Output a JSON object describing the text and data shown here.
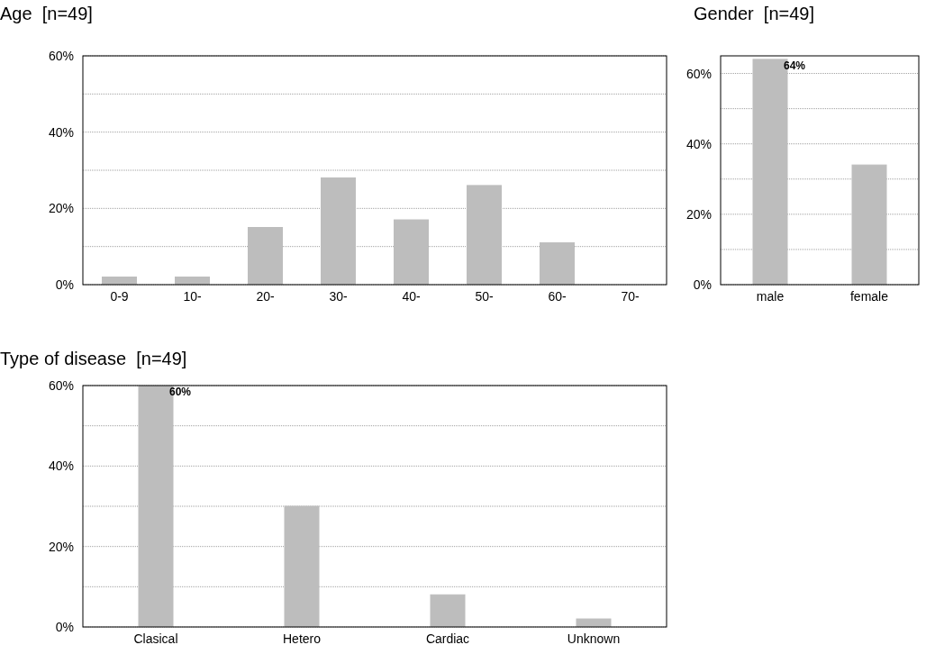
{
  "chart_data": [
    {
      "type": "bar",
      "title": "Age  [n=49]",
      "categories": [
        "0-9",
        "10-",
        "20-",
        "30-",
        "40-",
        "50-",
        "60-",
        "70-"
      ],
      "values": [
        2,
        2,
        15,
        28,
        17,
        26,
        11,
        0
      ],
      "color": "#bdbdbd",
      "ylim": [
        0,
        60
      ],
      "yticks": [
        {
          "value": 0,
          "label": "0%"
        },
        {
          "value": 10,
          "label": null
        },
        {
          "value": 20,
          "label": "20%"
        },
        {
          "value": 30,
          "label": null
        },
        {
          "value": 40,
          "label": "40%"
        },
        {
          "value": 50,
          "label": null
        },
        {
          "value": 60,
          "label": "60%"
        }
      ],
      "grid": "y"
    },
    {
      "type": "bar",
      "title": "Gender  [n=49]",
      "categories": [
        "male",
        "female"
      ],
      "values": [
        64,
        34
      ],
      "value_labels": [
        "64%",
        null
      ],
      "color": "#bdbdbd",
      "ylim": [
        0,
        65
      ],
      "yticks": [
        {
          "value": 0,
          "label": "0%"
        },
        {
          "value": 10,
          "label": null
        },
        {
          "value": 20,
          "label": "20%"
        },
        {
          "value": 30,
          "label": null
        },
        {
          "value": 40,
          "label": "40%"
        },
        {
          "value": 50,
          "label": null
        },
        {
          "value": 60,
          "label": "60%"
        }
      ],
      "grid": "y"
    },
    {
      "type": "bar",
      "title": "Type of disease  [n=49]",
      "categories": [
        "Clasical",
        "Hetero",
        "Cardiac",
        "Unknown"
      ],
      "values": [
        60,
        30,
        8,
        2
      ],
      "value_labels": [
        "60%",
        null,
        null,
        null
      ],
      "color": "#bdbdbd",
      "ylim": [
        0,
        60
      ],
      "yticks": [
        {
          "value": 0,
          "label": "0%"
        },
        {
          "value": 10,
          "label": null
        },
        {
          "value": 20,
          "label": "20%"
        },
        {
          "value": 30,
          "label": null
        },
        {
          "value": 40,
          "label": "40%"
        },
        {
          "value": 50,
          "label": null
        },
        {
          "value": 60,
          "label": "60%"
        }
      ],
      "grid": "y"
    }
  ]
}
